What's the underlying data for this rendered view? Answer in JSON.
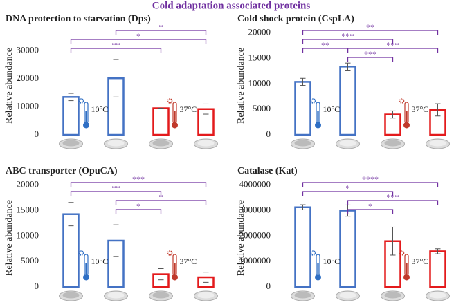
{
  "title": "Cold adaptation associated proteins",
  "temperature_labels": [
    "10°C",
    "37°C"
  ],
  "chart_data": [
    {
      "type": "bar",
      "title": "DNA protection to starvation (Dps)",
      "ylabel": "Relative abundance",
      "values": [
        13500,
        20200,
        9500,
        9200
      ],
      "errors": [
        1300,
        6700,
        0,
        1800
      ],
      "colors": [
        "#4472c4",
        "#4472c4",
        "#e31a1c",
        "#e31a1c"
      ],
      "ylim": [
        0,
        40000
      ],
      "yticks": [
        0,
        10000,
        20000,
        30000
      ],
      "significance": [
        {
          "pair": [
            1,
            3
          ],
          "label": "*"
        },
        {
          "pair": [
            0,
            3
          ],
          "label": "*"
        },
        {
          "pair": [
            0,
            2
          ],
          "label": "**"
        }
      ]
    },
    {
      "type": "bar",
      "title": "Cold shock protein (CspLA)",
      "ylabel": "Relative abundance",
      "values": [
        10400,
        13400,
        4000,
        4900
      ],
      "errors": [
        700,
        700,
        700,
        1200
      ],
      "colors": [
        "#4472c4",
        "#4472c4",
        "#e31a1c",
        "#e31a1c"
      ],
      "ylim": [
        0,
        22000
      ],
      "yticks": [
        0,
        5000,
        10000,
        15000,
        20000
      ],
      "significance": [
        {
          "pair": [
            0,
            3
          ],
          "label": "**"
        },
        {
          "pair": [
            0,
            2
          ],
          "label": "***"
        },
        {
          "pair": [
            1,
            3
          ],
          "label": "***"
        },
        {
          "pair": [
            0,
            1
          ],
          "label": "**"
        },
        {
          "pair": [
            1,
            2
          ],
          "label": "***"
        }
      ]
    },
    {
      "type": "bar",
      "title": "ABC transporter (OpuCA)",
      "ylabel": "Relative abundance",
      "values": [
        14300,
        9100,
        2500,
        1900
      ],
      "errors": [
        2300,
        3100,
        1100,
        1000
      ],
      "colors": [
        "#4472c4",
        "#4472c4",
        "#e31a1c",
        "#e31a1c"
      ],
      "ylim": [
        0,
        22000
      ],
      "yticks": [
        0,
        5000,
        10000,
        15000,
        20000
      ],
      "significance": [
        {
          "pair": [
            0,
            3
          ],
          "label": "***"
        },
        {
          "pair": [
            0,
            2
          ],
          "label": "**"
        },
        {
          "pair": [
            1,
            3
          ],
          "label": "*"
        },
        {
          "pair": [
            1,
            2
          ],
          "label": "*"
        }
      ]
    },
    {
      "type": "bar",
      "title": "Catalase (Kat)",
      "ylabel": "Relative abundance",
      "values": [
        3130000,
        3000000,
        1800000,
        1400000
      ],
      "errors": [
        100000,
        220000,
        550000,
        100000
      ],
      "colors": [
        "#4472c4",
        "#4472c4",
        "#e31a1c",
        "#e31a1c"
      ],
      "ylim": [
        0,
        4400000
      ],
      "yticks": [
        0,
        1000000,
        2000000,
        3000000,
        4000000
      ],
      "significance": [
        {
          "pair": [
            0,
            3
          ],
          "label": "****"
        },
        {
          "pair": [
            0,
            2
          ],
          "label": "*"
        },
        {
          "pair": [
            1,
            3
          ],
          "label": "***"
        },
        {
          "pair": [
            1,
            2
          ],
          "label": "*"
        }
      ]
    }
  ]
}
